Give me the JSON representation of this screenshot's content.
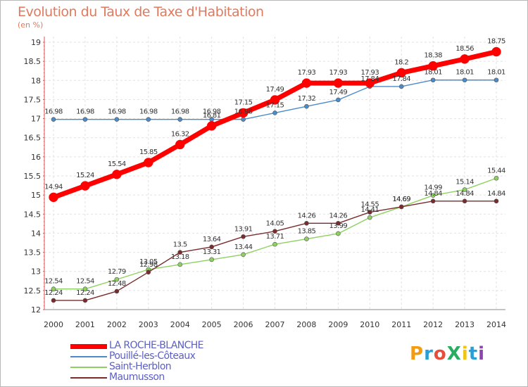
{
  "header": {
    "title": "Evolution du Taux de Taxe d'Habitation",
    "subtitle": "(en %)"
  },
  "logo": {
    "text": "ProXiti",
    "colors": [
      "#f39c12",
      "#2a9fd6",
      "#e84c3d",
      "#27ae60",
      "#f1c40f",
      "#2a9fd6",
      "#8e44ad"
    ]
  },
  "chart_data": {
    "type": "line",
    "x": [
      "2000",
      "2001",
      "2002",
      "2003",
      "2004",
      "2005",
      "2006",
      "2007",
      "2008",
      "2009",
      "2010",
      "2011",
      "2012",
      "2013",
      "2014"
    ],
    "ylim": [
      12,
      19
    ],
    "yticks": [
      "12",
      "12.5",
      "13",
      "13.5",
      "14",
      "14.5",
      "15",
      "15.5",
      "16",
      "16.5",
      "17",
      "17.5",
      "18",
      "18.5",
      "19"
    ],
    "grid": true,
    "legend": "bottom-left",
    "series": [
      {
        "name": "LA ROCHE-BLANCHE",
        "color": "#ff0000",
        "values": [
          14.94,
          15.24,
          15.54,
          15.85,
          16.32,
          16.81,
          17.15,
          17.49,
          17.93,
          17.93,
          17.93,
          18.2,
          18.38,
          18.56,
          18.75
        ],
        "labels": [
          "14.94",
          "15.24",
          "15.54",
          "15.85",
          "16.32",
          "16.81",
          "17.15",
          "17.49",
          "17.93",
          "17.93",
          "17.93",
          "18.2",
          "18.38",
          "18.56",
          "18.75"
        ]
      },
      {
        "name": "Pouillé-les-Côteaux",
        "color": "#4b8bc8",
        "values": [
          16.98,
          16.98,
          16.98,
          16.98,
          16.98,
          16.98,
          16.98,
          17.15,
          17.32,
          17.49,
          17.84,
          17.84,
          18.01,
          18.01,
          18.01
        ],
        "labels": [
          "16.98",
          "16.98",
          "16.98",
          "16.98",
          "16.98",
          "16.98",
          "16.98",
          "17.15",
          "17.32",
          "17.49",
          "17.84",
          "17.84",
          "18.01",
          "18.01",
          "18.01"
        ]
      },
      {
        "name": "Saint-Herblon",
        "color": "#8fd160",
        "values": [
          12.54,
          12.54,
          12.79,
          13.05,
          13.18,
          13.31,
          13.44,
          13.71,
          13.85,
          13.99,
          14.41,
          14.69,
          14.99,
          15.14,
          15.44
        ],
        "labels": [
          "12.54",
          "12.54",
          "12.79",
          "13.05",
          "13.18",
          "13.31",
          "13.44",
          "13.71",
          "13.85",
          "13.99",
          "14.41",
          "14.69",
          "14.99",
          "15.14",
          "15.44"
        ]
      },
      {
        "name": "Maumusson",
        "color": "#7a2b2b",
        "values": [
          12.24,
          12.24,
          12.48,
          12.98,
          13.5,
          13.64,
          13.91,
          14.05,
          14.26,
          14.26,
          14.55,
          14.69,
          14.84,
          14.84,
          14.84
        ],
        "labels": [
          "12.24",
          "12.24",
          "12.48",
          "12.98",
          "13.5",
          "13.64",
          "13.91",
          "14.05",
          "14.26",
          "14.26",
          "14.55",
          "14.69",
          "14.84",
          "14.84",
          "14.84"
        ]
      }
    ]
  }
}
